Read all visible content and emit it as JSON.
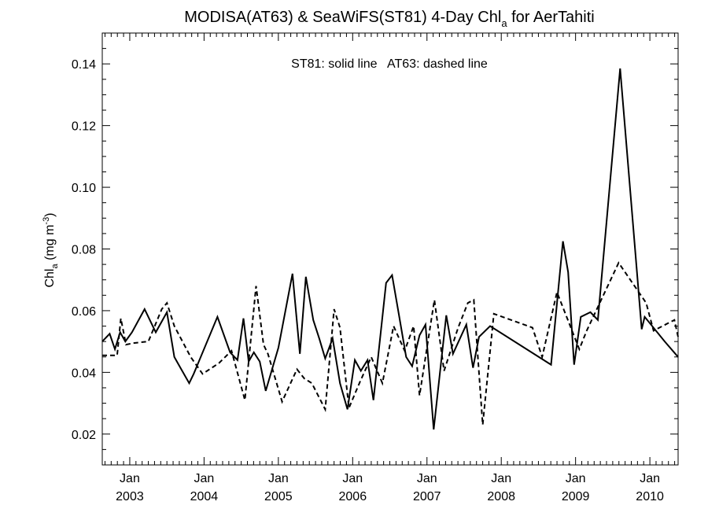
{
  "chart_data": {
    "type": "line",
    "title_main": "MODISA(AT63) & SeaWiFS(ST81) 4-Day Chl",
    "title_sub": "a",
    "title_tail": " for AerTahiti",
    "annotation": "ST81: solid line   AT63: dashed line",
    "ylabel_main": "Chl",
    "ylabel_sub": "a",
    "ylabel_unit": " (mg m",
    "ylabel_sup": "-3",
    "ylabel_close": ")",
    "ylim": [
      0.01,
      0.15
    ],
    "xlim": [
      2002.63,
      2010.38
    ],
    "yticks": [
      {
        "value": 0.02,
        "label": "0.02"
      },
      {
        "value": 0.04,
        "label": "0.04"
      },
      {
        "value": 0.06,
        "label": "0.06"
      },
      {
        "value": 0.08,
        "label": "0.08"
      },
      {
        "value": 0.1,
        "label": "0.10"
      },
      {
        "value": 0.12,
        "label": "0.12"
      },
      {
        "value": 0.14,
        "label": "0.14"
      }
    ],
    "xticks": [
      {
        "value": 2003.0,
        "month": "Jan",
        "year": "2003"
      },
      {
        "value": 2004.0,
        "month": "Jan",
        "year": "2004"
      },
      {
        "value": 2005.0,
        "month": "Jan",
        "year": "2005"
      },
      {
        "value": 2006.0,
        "month": "Jan",
        "year": "2006"
      },
      {
        "value": 2007.0,
        "month": "Jan",
        "year": "2007"
      },
      {
        "value": 2008.0,
        "month": "Jan",
        "year": "2008"
      },
      {
        "value": 2009.0,
        "month": "Jan",
        "year": "2009"
      },
      {
        "value": 2010.0,
        "month": "Jan",
        "year": "2010"
      }
    ],
    "grid": false,
    "series": [
      {
        "style": "solid",
        "x": [
          2002.63,
          2002.73,
          2002.8,
          2002.87,
          2002.94,
          2003.03,
          2003.2,
          2003.35,
          2003.5,
          2003.6,
          2003.67,
          2003.8,
          2003.86,
          2004.18,
          2004.35,
          2004.45,
          2004.53,
          2004.6,
          2004.67,
          2004.75,
          2004.83,
          2005.0,
          2005.19,
          2005.29,
          2005.37,
          2005.47,
          2005.55,
          2005.63,
          2005.73,
          2005.83,
          2005.93,
          2006.03,
          2006.11,
          2006.2,
          2006.28,
          2006.45,
          2006.53,
          2006.62,
          2006.72,
          2006.8,
          2006.9,
          2006.98,
          2007.09,
          2007.26,
          2007.35,
          2007.53,
          2007.62,
          2007.7,
          2007.85,
          2008.67,
          2008.83,
          2008.9,
          2008.98,
          2009.07,
          2009.2,
          2009.3,
          2009.6,
          2009.89,
          2009.93,
          2010.2,
          2010.38
        ],
        "y": [
          0.05,
          0.0525,
          0.0475,
          0.053,
          0.05,
          0.053,
          0.0605,
          0.053,
          0.0595,
          0.045,
          0.042,
          0.0365,
          0.0395,
          0.058,
          0.0465,
          0.044,
          0.0575,
          0.0435,
          0.0465,
          0.0435,
          0.034,
          0.048,
          0.072,
          0.046,
          0.071,
          0.057,
          0.051,
          0.0445,
          0.051,
          0.0365,
          0.028,
          0.044,
          0.0405,
          0.044,
          0.031,
          0.069,
          0.0715,
          0.059,
          0.045,
          0.042,
          0.052,
          0.0555,
          0.0215,
          0.0585,
          0.046,
          0.0555,
          0.0415,
          0.0515,
          0.055,
          0.0425,
          0.0825,
          0.0725,
          0.0425,
          0.058,
          0.0595,
          0.057,
          0.1385,
          0.054,
          0.058,
          0.05,
          0.045
        ]
      },
      {
        "style": "dashed",
        "x": [
          2002.63,
          2002.83,
          2002.88,
          2002.95,
          2003.05,
          2003.25,
          2003.43,
          2003.5,
          2003.6,
          2003.82,
          2003.98,
          2004.2,
          2004.37,
          2004.55,
          2004.7,
          2004.8,
          2004.86,
          2005.05,
          2005.25,
          2005.35,
          2005.45,
          2005.63,
          2005.75,
          2005.83,
          2005.95,
          2006.1,
          2006.25,
          2006.4,
          2006.55,
          2006.7,
          2006.82,
          2006.9,
          2007.1,
          2007.23,
          2007.42,
          2007.55,
          2007.63,
          2007.75,
          2007.9,
          2008.42,
          2008.55,
          2008.75,
          2008.88,
          2009.05,
          2009.15,
          2009.58,
          2009.95,
          2010.05,
          2010.33,
          2010.38
        ],
        "y": [
          0.0455,
          0.0455,
          0.0575,
          0.049,
          0.0495,
          0.05,
          0.0605,
          0.0625,
          0.055,
          0.045,
          0.0395,
          0.043,
          0.047,
          0.031,
          0.068,
          0.049,
          0.046,
          0.0305,
          0.041,
          0.038,
          0.0365,
          0.028,
          0.0605,
          0.0545,
          0.0285,
          0.037,
          0.045,
          0.0365,
          0.055,
          0.047,
          0.055,
          0.0325,
          0.0635,
          0.0405,
          0.0545,
          0.0625,
          0.0635,
          0.023,
          0.059,
          0.0545,
          0.045,
          0.066,
          0.058,
          0.0475,
          0.0535,
          0.0755,
          0.0625,
          0.0535,
          0.057,
          0.0515
        ]
      }
    ]
  }
}
